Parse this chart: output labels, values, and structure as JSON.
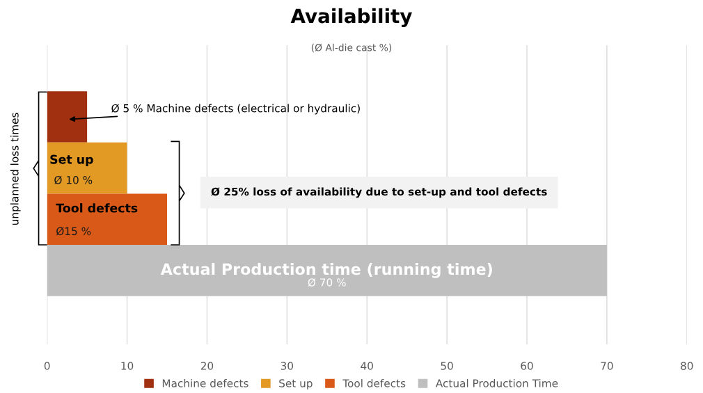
{
  "chart_data": {
    "type": "bar",
    "orientation": "horizontal",
    "title": "Availability",
    "subtitle": "(Ø Al-die cast %)",
    "ylabel": "unplanned loss times",
    "categories": [
      null,
      null,
      null,
      null
    ],
    "series": [
      {
        "name": "Machine defects",
        "color": "#a0300f",
        "values": [
          5,
          null,
          null,
          null
        ]
      },
      {
        "name": "Set up",
        "color": "#e39a25",
        "values": [
          null,
          10,
          null,
          null
        ],
        "value_labels": [
          null,
          "Ø 10 %",
          null,
          null
        ]
      },
      {
        "name": "Tool defects",
        "color": "#d95a18",
        "values": [
          null,
          null,
          15,
          null
        ],
        "value_labels": [
          null,
          null,
          "Ø15 %",
          null
        ]
      },
      {
        "name": "Actual Production Time",
        "color": "#bfbfbf",
        "values": [
          null,
          null,
          null,
          70
        ],
        "value_labels": [
          null,
          null,
          null,
          "Ø 70 %"
        ]
      }
    ],
    "xlim": [
      0,
      80
    ],
    "xticks": [
      0,
      10,
      20,
      30,
      40,
      50,
      60,
      70,
      80
    ],
    "grid": "x",
    "legend": "bottom",
    "annotations": [
      "Ø 5 % Machine defects (electrical or hydraulic)",
      "Set up",
      "Tool defects",
      "Actual Production time (running time)",
      "Ø 25% loss of availability due to set-up and tool defects"
    ]
  }
}
